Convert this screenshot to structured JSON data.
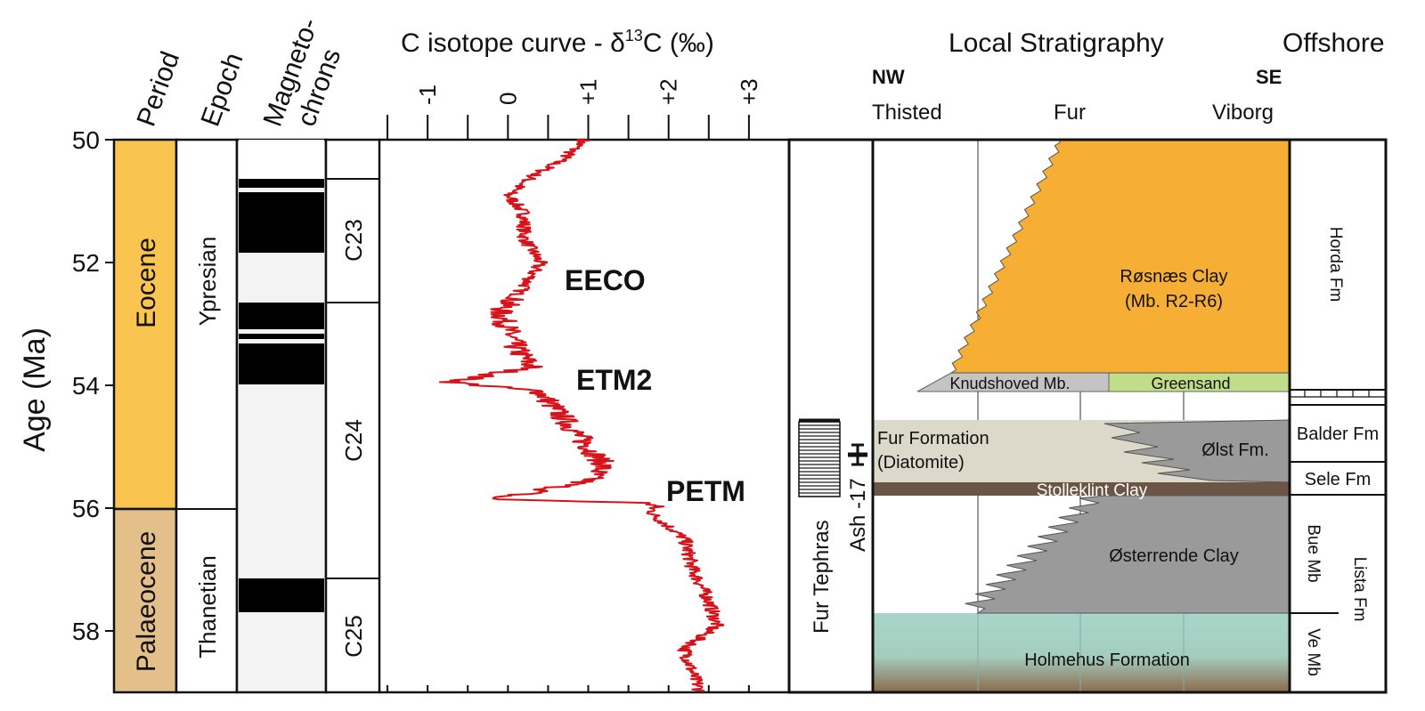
{
  "headers": {
    "period": "Period",
    "epoch": "Epoch",
    "magneto_line1": "Magneto-",
    "magneto_line2": "chrons",
    "isotope_main": "C isotope curve - δ",
    "isotope_sup": "13",
    "isotope_end": "C (‰)",
    "local_strat": "Local Stratigraphy",
    "offshore": "Offshore"
  },
  "age_axis": {
    "label": "Age (Ma)",
    "ticks": [
      "50",
      "52",
      "54",
      "56",
      "58"
    ],
    "range": [
      50,
      59
    ]
  },
  "periods": [
    "Eocene",
    "Palaeocene"
  ],
  "epochs": [
    "Ypresian",
    "Thanetian"
  ],
  "chrons": [
    "C23",
    "C24",
    "C25"
  ],
  "isotope_axis": {
    "ticks": [
      "-1",
      "0",
      "+1",
      "+2",
      "+3"
    ],
    "range": [
      -1.6,
      3.5
    ]
  },
  "events": [
    "EECO",
    "ETM2",
    "PETM"
  ],
  "tephras": {
    "fur": "Fur Tephras",
    "ash": "Ash -17"
  },
  "locations": {
    "nw": "NW",
    "se": "SE",
    "thisted": "Thisted",
    "fur": "Fur",
    "viborg": "Viborg"
  },
  "units": {
    "rosnaes_line1": "Røsnæs Clay",
    "rosnaes_line2": "(Mb. R2-R6)",
    "knudshoved": "Knudshoved Mb.",
    "greensand": "Greensand",
    "fur_formation_line1": "Fur Formation",
    "fur_formation_line2": "(Diatomite)",
    "olst": "Ølst Fm.",
    "stolleklint": "Stolleklint Clay",
    "osterrende": "Østerrende Clay",
    "holmehus": "Holmehus Formation"
  },
  "offshore_units": {
    "horda": "Horda Fm",
    "balder": "Balder Fm",
    "sele": "Sele Fm",
    "bue": "Bue Mb",
    "lista": "Lista Fm",
    "ve": "Ve Mb"
  },
  "colors": {
    "eocene": "#F9C44F",
    "palaeocene": "#E3BF8A",
    "rosnaes": "#F6AE34",
    "greensand": "#C2DD8A",
    "knudshoved": "#C4C4C4",
    "fur_formation": "#DCD9CA",
    "olst": "#9A9A9A",
    "stolleklint": "#6B5545",
    "osterrende": "#9A9A9A",
    "holmehus_top": "#A8D6C9",
    "holmehus_bottom": "#8A6A4C",
    "isotope_curve": "#D7121A"
  }
}
